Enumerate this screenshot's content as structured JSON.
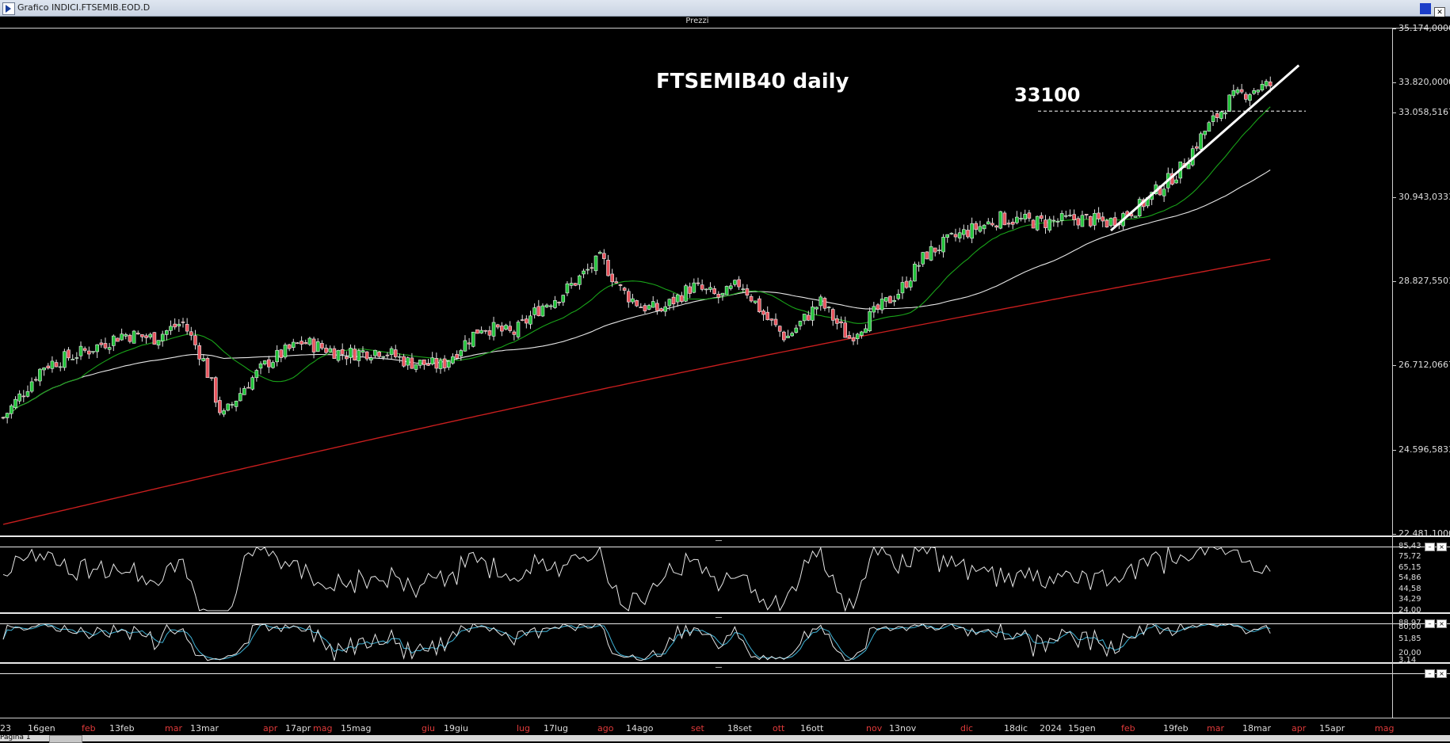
{
  "window": {
    "title": "Grafico INDICI.FTSEMIB.EOD.D",
    "panel_title": "Prezzi"
  },
  "annotations": {
    "title": "FTSEMIB40 daily",
    "level_label": "33100"
  },
  "statusbar": {
    "text": "Pagina 1"
  },
  "colors": {
    "up": "#22c33a",
    "down": "#e8545d",
    "ma_fast": "#19a319",
    "ma_mid": "#e6e6e6",
    "ma_slow": "#c81e1e",
    "rsi": "#e6e6e6",
    "stoch_k": "#e6e6e6",
    "stoch_d": "#3fb4d8",
    "trendline": "#ffffff"
  },
  "price_axis": {
    "labels": [
      "35.174,0000",
      "33.820,0000",
      "33.058,5167",
      "30.943,0333",
      "28.827,5501",
      "26.712,0667",
      "24.596,5833",
      "22.481,1000"
    ]
  },
  "rsi_axis": {
    "labels": [
      "85,43",
      "75,72",
      "65,15",
      "54,86",
      "44,58",
      "34,29",
      "24,00"
    ]
  },
  "stoch_axis": {
    "labels": [
      "88,97",
      "80,00",
      "51,85",
      "20,00",
      "3,14"
    ]
  },
  "x_axis": {
    "labels": [
      {
        "t": "23",
        "red": false
      },
      {
        "t": "16gen",
        "red": false
      },
      {
        "t": "feb",
        "red": true
      },
      {
        "t": "13feb",
        "red": false
      },
      {
        "t": "mar",
        "red": true
      },
      {
        "t": "13mar",
        "red": false
      },
      {
        "t": "apr",
        "red": true
      },
      {
        "t": "17apr",
        "red": false
      },
      {
        "t": "mag",
        "red": true
      },
      {
        "t": "15mag",
        "red": false
      },
      {
        "t": "giu",
        "red": true
      },
      {
        "t": "19giu",
        "red": false
      },
      {
        "t": "lug",
        "red": true
      },
      {
        "t": "17lug",
        "red": false
      },
      {
        "t": "ago",
        "red": true
      },
      {
        "t": "14ago",
        "red": false
      },
      {
        "t": "set",
        "red": true
      },
      {
        "t": "18set",
        "red": false
      },
      {
        "t": "ott",
        "red": true
      },
      {
        "t": "16ott",
        "red": false
      },
      {
        "t": "nov",
        "red": true
      },
      {
        "t": "13nov",
        "red": false
      },
      {
        "t": "dic",
        "red": true
      },
      {
        "t": "18dic",
        "red": false
      },
      {
        "t": "2024",
        "red": false
      },
      {
        "t": "15gen",
        "red": false
      },
      {
        "t": "feb",
        "red": true
      },
      {
        "t": "19feb",
        "red": false
      },
      {
        "t": "mar",
        "red": true
      },
      {
        "t": "18mar",
        "red": false
      },
      {
        "t": "apr",
        "red": true
      },
      {
        "t": "15apr",
        "red": false
      },
      {
        "t": "mag",
        "red": true
      }
    ]
  },
  "chart_data": {
    "type": "candlestick",
    "title": "FTSEMIB40 daily",
    "ylim": [
      22481.1,
      35174.0
    ],
    "anchors": [
      {
        "date": "2023-01-02",
        "close": 25400
      },
      {
        "date": "2023-01-16",
        "close": 26700
      },
      {
        "date": "2023-02-01",
        "close": 27100
      },
      {
        "date": "2023-02-13",
        "close": 27500
      },
      {
        "date": "2023-02-24",
        "close": 27400
      },
      {
        "date": "2023-03-06",
        "close": 27800
      },
      {
        "date": "2023-03-13",
        "close": 26900
      },
      {
        "date": "2023-03-20",
        "close": 25400
      },
      {
        "date": "2023-03-28",
        "close": 26200
      },
      {
        "date": "2023-04-05",
        "close": 26800
      },
      {
        "date": "2023-04-17",
        "close": 27300
      },
      {
        "date": "2023-05-02",
        "close": 27000
      },
      {
        "date": "2023-05-15",
        "close": 27100
      },
      {
        "date": "2023-05-24",
        "close": 26800
      },
      {
        "date": "2023-06-05",
        "close": 26700
      },
      {
        "date": "2023-06-19",
        "close": 27700
      },
      {
        "date": "2023-06-30",
        "close": 27500
      },
      {
        "date": "2023-07-10",
        "close": 28200
      },
      {
        "date": "2023-07-17",
        "close": 28500
      },
      {
        "date": "2023-07-31",
        "close": 29400
      },
      {
        "date": "2023-08-07",
        "close": 28600
      },
      {
        "date": "2023-08-14",
        "close": 28200
      },
      {
        "date": "2023-08-21",
        "close": 28100
      },
      {
        "date": "2023-09-01",
        "close": 28700
      },
      {
        "date": "2023-09-11",
        "close": 28400
      },
      {
        "date": "2023-09-18",
        "close": 28800
      },
      {
        "date": "2023-09-27",
        "close": 27900
      },
      {
        "date": "2023-10-04",
        "close": 27400
      },
      {
        "date": "2023-10-16",
        "close": 28300
      },
      {
        "date": "2023-10-26",
        "close": 27400
      },
      {
        "date": "2023-11-02",
        "close": 27900
      },
      {
        "date": "2023-11-13",
        "close": 28600
      },
      {
        "date": "2023-11-22",
        "close": 29500
      },
      {
        "date": "2023-12-04",
        "close": 30000
      },
      {
        "date": "2023-12-18",
        "close": 30400
      },
      {
        "date": "2024-01-02",
        "close": 30300
      },
      {
        "date": "2024-01-15",
        "close": 30400
      },
      {
        "date": "2024-01-25",
        "close": 30300
      },
      {
        "date": "2024-02-05",
        "close": 30700
      },
      {
        "date": "2024-02-19",
        "close": 31600
      },
      {
        "date": "2024-02-28",
        "close": 32600
      },
      {
        "date": "2024-03-08",
        "close": 33400
      },
      {
        "date": "2024-03-18",
        "close": 33700
      },
      {
        "date": "2024-03-22",
        "close": 33750
      }
    ],
    "moving_averages": [
      {
        "name": "MA fast",
        "color": "#19a319"
      },
      {
        "name": "MA mid",
        "color": "#e6e6e6"
      },
      {
        "name": "MA slow",
        "color": "#c81e1e"
      }
    ],
    "horizontal_line": {
      "value": 33100,
      "style": "dashed"
    },
    "trendline": {
      "from": {
        "date": "2024-01-26",
        "value": 30100
      },
      "to": {
        "date": "2024-04-01",
        "value": 34250
      }
    },
    "indicators": [
      {
        "name": "RSI",
        "ylim": [
          24,
          85.43
        ]
      },
      {
        "name": "Stochastic",
        "ylim": [
          3.14,
          88.97
        ]
      }
    ]
  }
}
